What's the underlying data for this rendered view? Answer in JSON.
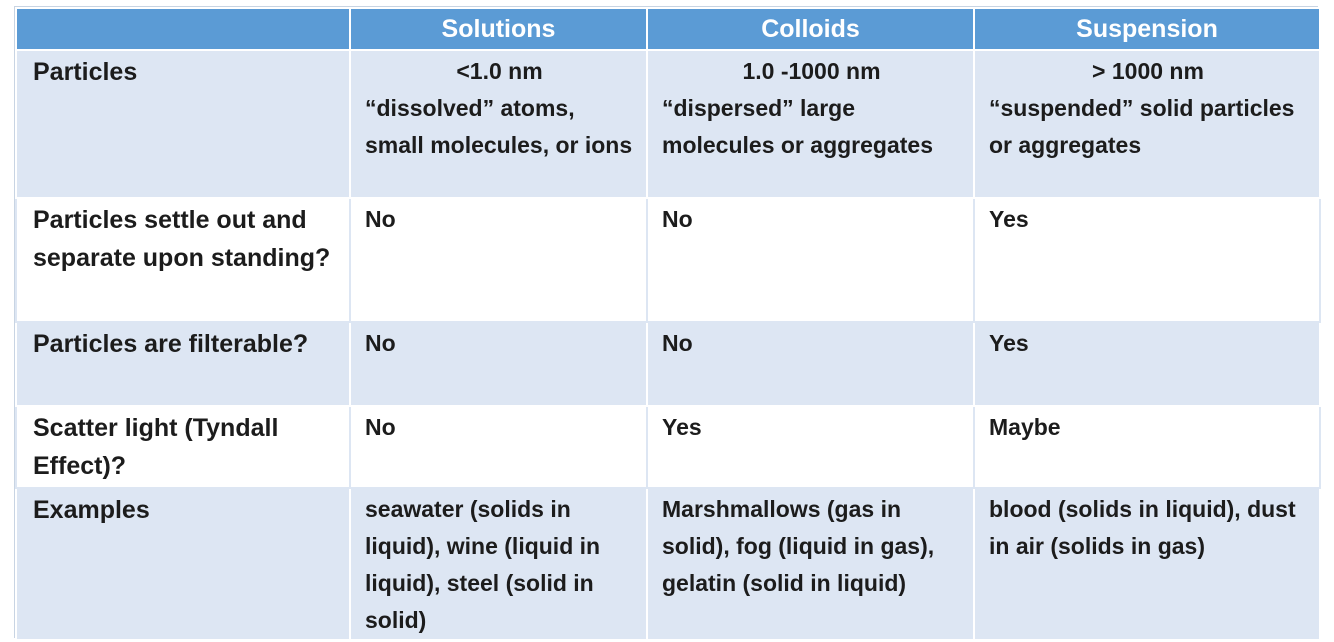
{
  "table": {
    "headers": [
      "",
      "Solutions",
      "Colloids",
      "Suspension"
    ],
    "rows": [
      {
        "label": "Particles",
        "cells": [
          {
            "size": "<1.0 nm",
            "desc": "“dissolved” atoms, small molecules, or ions"
          },
          {
            "size": "1.0 -1000 nm",
            "desc": "“dispersed” large molecules or aggregates"
          },
          {
            "size": "> 1000 nm",
            "desc": "“suspended” solid particles or aggregates"
          }
        ]
      },
      {
        "label": "Particles settle out and separate upon standing?",
        "cells": [
          "No",
          "No",
          "Yes"
        ]
      },
      {
        "label": "Particles are filterable?",
        "cells": [
          "No",
          "No",
          "Yes"
        ]
      },
      {
        "label": "Scatter light (Tyndall Effect)?",
        "cells": [
          "No",
          "Yes",
          "Maybe"
        ]
      },
      {
        "label": "Examples",
        "cells": [
          "seawater (solids in liquid), wine (liquid in liquid), steel (solid in solid)",
          "Marshmallows (gas in solid), fog (liquid in gas), gelatin (solid in liquid)",
          "blood (solids in liquid), dust in air (solids in gas)"
        ]
      }
    ]
  }
}
